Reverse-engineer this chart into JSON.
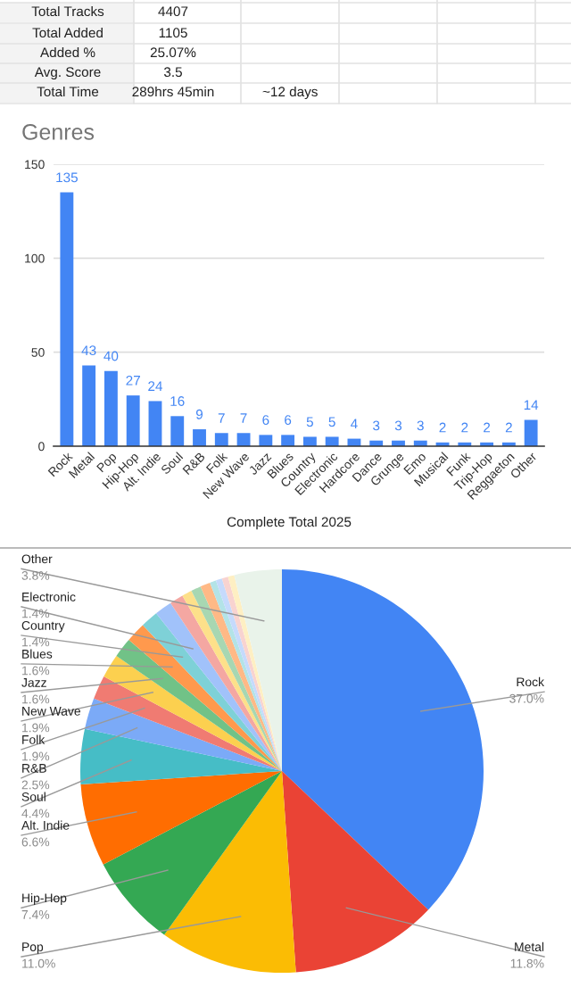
{
  "chart_data": [
    {
      "type": "other",
      "annotations": [
        "Total Tracks",
        "4407",
        "Total Added",
        "1105",
        "Added %",
        "25.07%",
        "Avg. Score",
        "3.5",
        "Total Time",
        "289hrs 45min",
        "~12 days"
      ]
    },
    {
      "type": "bar",
      "title": "Genres",
      "xlabel": "Complete Total 2025",
      "categories": [
        "Rock",
        "Metal",
        "Pop",
        "Hip-Hop",
        "Alt. Indie",
        "Soul",
        "R&B",
        "Folk",
        "New Wave",
        "Jazz",
        "Blues",
        "Country",
        "Electronic",
        "Hardcore",
        "Dance",
        "Grunge",
        "Emo",
        "Musical",
        "Funk",
        "Trip-Hop",
        "Reggaeton",
        "Other"
      ],
      "values": [
        135,
        43,
        40,
        27,
        24,
        16,
        9,
        7,
        7,
        6,
        6,
        5,
        5,
        4,
        3,
        3,
        3,
        2,
        2,
        2,
        2,
        14
      ],
      "color": "#4285f4",
      "ylim": [
        0,
        150
      ],
      "yticks": [
        0,
        50,
        100,
        150
      ],
      "grid": "y",
      "data_labels": true
    },
    {
      "type": "pie",
      "categories": [
        "Rock",
        "Metal",
        "Pop",
        "Hip-Hop",
        "Alt. Indie",
        "Soul",
        "R&B",
        "Folk",
        "New Wave",
        "Jazz",
        "Blues",
        "Country",
        "Electronic",
        null,
        null,
        null,
        null,
        null,
        null,
        null,
        null,
        "Other"
      ],
      "values": [
        37.0,
        11.8,
        11.0,
        7.4,
        6.6,
        4.4,
        2.5,
        1.9,
        1.9,
        1.6,
        1.6,
        1.4,
        1.4,
        1.1,
        0.8,
        0.8,
        0.8,
        0.5,
        0.5,
        0.5,
        0.5,
        3.8
      ],
      "value_labels": [
        "37.0%",
        "11.8%",
        "11.0%",
        "7.4%",
        "6.6%",
        "4.4%",
        "2.5%",
        "1.9%",
        "1.9%",
        "1.6%",
        "1.6%",
        "1.4%",
        "1.4%",
        null,
        null,
        null,
        null,
        null,
        null,
        null,
        null,
        "3.8%"
      ],
      "colors": [
        "#4285f4",
        "#ea4335",
        "#fbbc04",
        "#34a853",
        "#ff6d01",
        "#46bdc6",
        "#7baaf7",
        "#f07b72",
        "#fcd04f",
        "#71c287",
        "#ff994d",
        "#7ed1d7",
        "#a1c2fa",
        "#f4a7a2",
        "#fde08a",
        "#a7d7b2",
        "#ffb986",
        "#b3e3e7",
        "#c5dafc",
        "#f8d3d0",
        "#feefc3",
        "#e9f3ea"
      ]
    }
  ]
}
